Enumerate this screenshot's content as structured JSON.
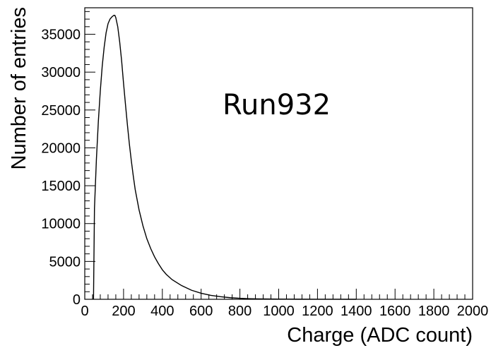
{
  "chart_data": {
    "type": "line",
    "style": "histogram-step",
    "title": "",
    "xlabel": "Charge (ADC count)",
    "ylabel": "Number of entries",
    "annotation": "Run932",
    "xlim": [
      0,
      2000
    ],
    "ylim": [
      0,
      38500
    ],
    "x_ticks": [
      0,
      200,
      400,
      600,
      800,
      1000,
      1200,
      1400,
      1600,
      1800,
      2000
    ],
    "x_tick_labels": [
      "0",
      "200",
      "400",
      "600",
      "800",
      "1000",
      "1200",
      "1400",
      "1600",
      "1800",
      "2000"
    ],
    "y_ticks": [
      0,
      5000,
      10000,
      15000,
      20000,
      25000,
      30000,
      35000
    ],
    "y_tick_labels": [
      "0",
      "5000",
      "10000",
      "15000",
      "20000",
      "25000",
      "30000",
      "35000"
    ],
    "grid": false,
    "legend": "none",
    "line_color": "#000000",
    "series": [
      {
        "x": [
          45,
          50,
          60,
          70,
          80,
          90,
          100,
          110,
          120,
          130,
          140,
          150,
          155,
          160,
          170,
          180,
          190,
          200,
          210,
          220,
          230,
          240,
          250,
          260,
          280,
          300,
          320,
          340,
          360,
          380,
          400,
          420,
          450,
          500,
          550,
          600,
          650,
          700,
          750,
          800,
          850,
          900,
          1000,
          1100,
          1200,
          1300,
          1400
        ],
        "y": [
          0,
          12000,
          18500,
          23500,
          27500,
          30800,
          33300,
          35200,
          36400,
          37000,
          37300,
          37500,
          37500,
          37200,
          36000,
          34000,
          31500,
          28500,
          25700,
          23000,
          20500,
          18300,
          16300,
          14500,
          11800,
          9700,
          8000,
          6700,
          5600,
          4700,
          3900,
          3300,
          2600,
          1800,
          1200,
          800,
          520,
          340,
          210,
          130,
          80,
          50,
          25,
          12,
          6,
          3,
          0
        ]
      }
    ]
  }
}
